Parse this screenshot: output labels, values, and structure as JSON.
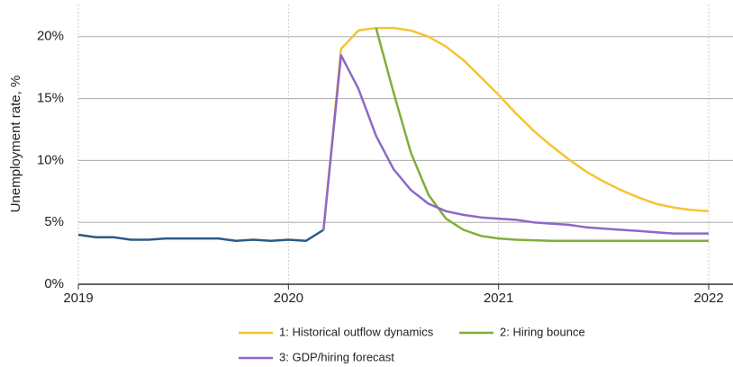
{
  "chart_data": {
    "type": "line",
    "y_label": "Unemployment rate, %",
    "xlim": [
      2019,
      2022.12
    ],
    "xticks": [
      2019,
      2020,
      2021,
      2022
    ],
    "ylim": [
      0,
      22.6
    ],
    "yticks": [
      {
        "value": 0,
        "label": "0%"
      },
      {
        "value": 5,
        "label": "5%"
      },
      {
        "value": 10,
        "label": "10%"
      },
      {
        "value": 15,
        "label": "15%"
      },
      {
        "value": 20,
        "label": "20%"
      }
    ],
    "grid": true,
    "series": [
      {
        "color": "#2b5a86",
        "x": [
          2019,
          2019.083,
          2019.167,
          2019.25,
          2019.333,
          2019.417,
          2019.5,
          2019.583,
          2019.667,
          2019.75,
          2019.833,
          2019.917,
          2020,
          2020.083,
          2020.167
        ],
        "values": [
          4.0,
          3.8,
          3.8,
          3.6,
          3.6,
          3.7,
          3.7,
          3.7,
          3.7,
          3.5,
          3.6,
          3.5,
          3.6,
          3.5,
          4.4
        ]
      },
      {
        "name": "1: Historical outflow dynamics",
        "color": "#f5c433",
        "x": [
          2020.167,
          2020.25,
          2020.333,
          2020.417,
          2020.5,
          2020.583,
          2020.667,
          2020.75,
          2020.833,
          2020.917,
          2021,
          2021.083,
          2021.167,
          2021.25,
          2021.333,
          2021.417,
          2021.5,
          2021.583,
          2021.667,
          2021.75,
          2021.833,
          2021.917,
          2022
        ],
        "values": [
          4.4,
          19.0,
          20.5,
          20.7,
          20.7,
          20.5,
          20.0,
          19.2,
          18.1,
          16.7,
          15.3,
          13.8,
          12.4,
          11.2,
          10.1,
          9.1,
          8.3,
          7.6,
          7.0,
          6.5,
          6.2,
          6.0,
          5.9
        ]
      },
      {
        "name": "2: Hiring bounce",
        "color": "#7fae3b",
        "x": [
          2020.417,
          2020.5,
          2020.583,
          2020.667,
          2020.75,
          2020.833,
          2020.917,
          2021,
          2021.083,
          2021.167,
          2021.25,
          2021.333,
          2021.417,
          2021.5,
          2021.583,
          2021.667,
          2021.75,
          2021.833,
          2021.917,
          2022
        ],
        "values": [
          20.7,
          15.5,
          10.6,
          7.2,
          5.3,
          4.4,
          3.9,
          3.7,
          3.6,
          3.55,
          3.5,
          3.5,
          3.5,
          3.5,
          3.5,
          3.5,
          3.5,
          3.5,
          3.5,
          3.5
        ]
      },
      {
        "name": "3: GDP/hiring forecast",
        "color": "#8b69c9",
        "x": [
          2020.167,
          2020.25,
          2020.333,
          2020.417,
          2020.5,
          2020.583,
          2020.667,
          2020.75,
          2020.833,
          2020.917,
          2021,
          2021.083,
          2021.167,
          2021.25,
          2021.333,
          2021.417,
          2021.5,
          2021.583,
          2021.667,
          2021.75,
          2021.833,
          2021.917,
          2022
        ],
        "values": [
          4.4,
          18.5,
          15.8,
          12.0,
          9.3,
          7.6,
          6.5,
          5.9,
          5.6,
          5.4,
          5.3,
          5.2,
          5.0,
          4.9,
          4.8,
          4.6,
          4.5,
          4.4,
          4.3,
          4.2,
          4.1,
          4.1,
          4.1
        ]
      }
    ]
  }
}
